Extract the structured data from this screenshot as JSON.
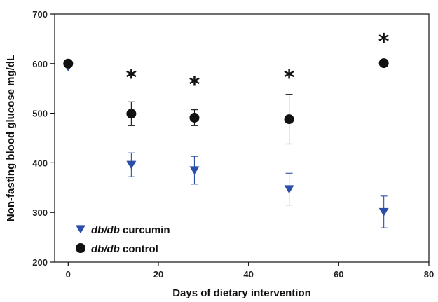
{
  "chart_data": {
    "type": "scatter",
    "title": "",
    "xlabel": "Days of dietary intervention",
    "ylabel": "Non-fasting blood glucose mg/dL",
    "xlim": [
      -3,
      80
    ],
    "ylim": [
      200,
      700
    ],
    "xticks": [
      0,
      20,
      40,
      60,
      80
    ],
    "yticks": [
      200,
      300,
      400,
      500,
      600,
      700
    ],
    "grid": false,
    "legend_position": "bottom-left",
    "series": [
      {
        "name": "db/db curcumin",
        "marker": "triangle-down",
        "color": "#2b4fa8",
        "x": [
          0,
          14,
          28,
          49,
          70
        ],
        "y": [
          593,
          396,
          385,
          347,
          301
        ],
        "error": [
          null,
          24,
          28,
          32,
          32
        ]
      },
      {
        "name": "db/db control",
        "marker": "circle",
        "color": "#111111",
        "x": [
          0,
          14,
          28,
          49,
          70
        ],
        "y": [
          600,
          499,
          491,
          488,
          601
        ],
        "error": [
          null,
          24,
          16,
          50,
          null
        ]
      }
    ],
    "annotations": [
      {
        "text": "*",
        "x": 14,
        "y": 580
      },
      {
        "text": "*",
        "x": 28,
        "y": 566
      },
      {
        "text": "*",
        "x": 49,
        "y": 580
      },
      {
        "text": "*",
        "x": 70,
        "y": 653
      }
    ],
    "legend": [
      {
        "label": "db/db",
        "suffix": " curcumin"
      },
      {
        "label": "db/db",
        "suffix": " control"
      }
    ]
  }
}
